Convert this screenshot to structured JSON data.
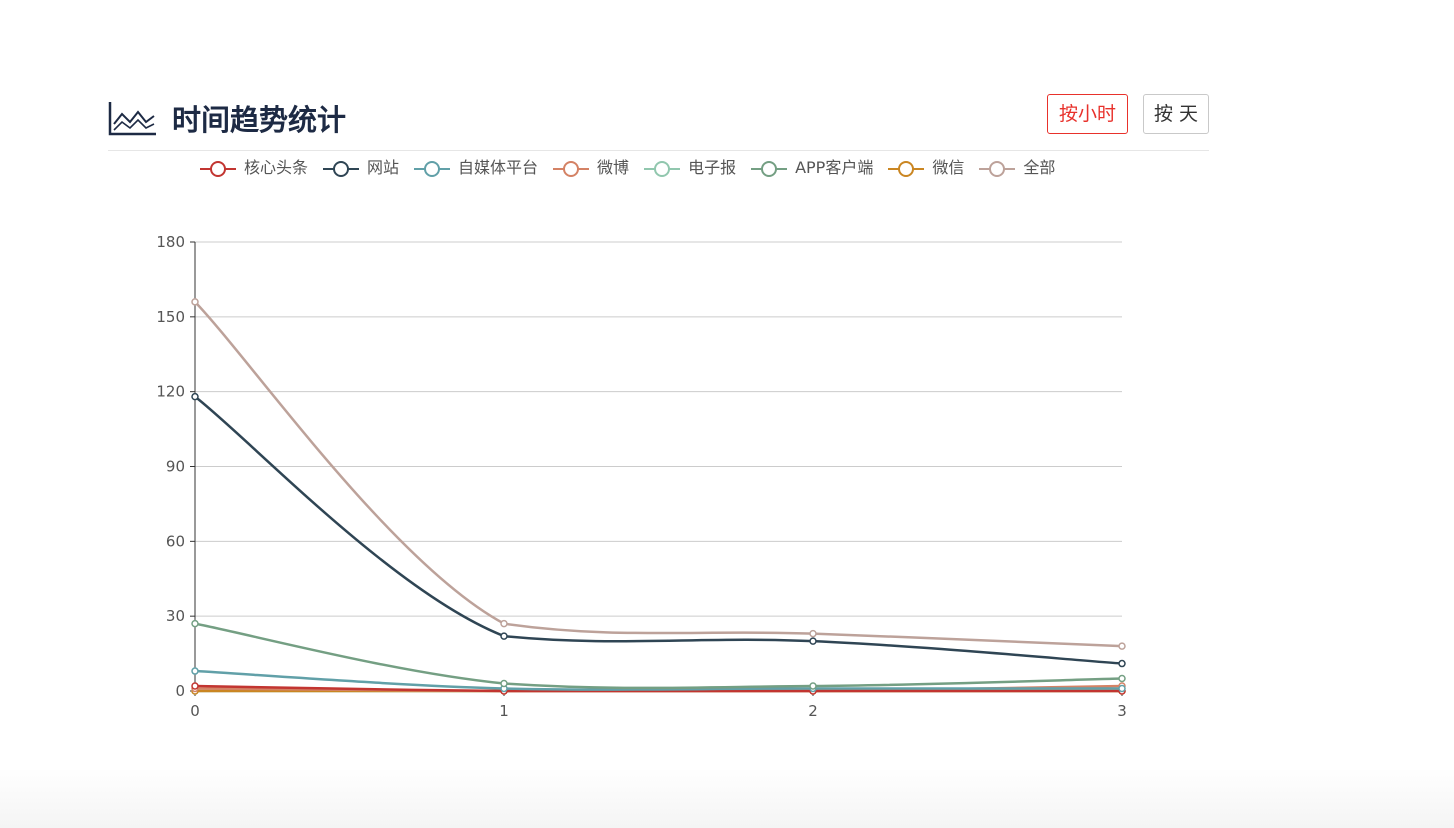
{
  "header": {
    "title": "时间趋势统计",
    "icon": "line-chart-icon",
    "hour_button": "按小时",
    "day_button": "按 天",
    "accent_color": "#e8312b",
    "title_color": "#1d2a44"
  },
  "chart_data": {
    "type": "line",
    "title": "",
    "xlabel": "",
    "ylabel": "",
    "categories": [
      "0",
      "1",
      "2",
      "3"
    ],
    "yticks": [
      "0",
      "30",
      "60",
      "90",
      "120",
      "150",
      "180"
    ],
    "ylim": [
      0,
      180
    ],
    "grid": true,
    "legend_position": "top",
    "smooth": true,
    "series": [
      {
        "name": "核心头条",
        "color": "#c23531",
        "values": [
          2,
          0,
          0,
          0
        ]
      },
      {
        "name": "网站",
        "color": "#2f4554",
        "values": [
          118,
          22,
          20,
          11
        ]
      },
      {
        "name": "自媒体平台",
        "color": "#61a0a8",
        "values": [
          8,
          1,
          1,
          1
        ]
      },
      {
        "name": "微博",
        "color": "#d48265",
        "values": [
          1,
          0,
          0,
          2
        ]
      },
      {
        "name": "电子报",
        "color": "#91c7ae",
        "values": [
          0,
          0,
          0,
          0
        ]
      },
      {
        "name": "APP客户端",
        "color": "#749f83",
        "values": [
          27,
          3,
          2,
          5
        ]
      },
      {
        "name": "微信",
        "color": "#ca8622",
        "values": [
          0,
          0,
          0,
          0
        ]
      },
      {
        "name": "全部",
        "color": "#bda29a",
        "values": [
          156,
          27,
          23,
          18
        ]
      }
    ]
  }
}
